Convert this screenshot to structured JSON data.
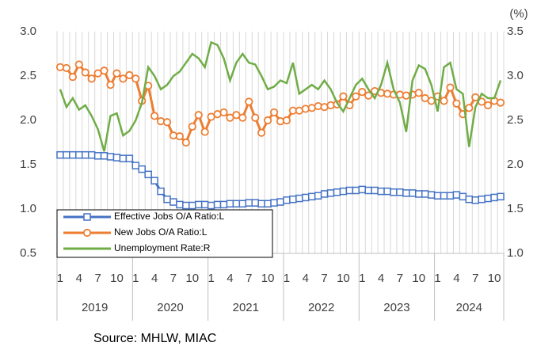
{
  "chart_data": {
    "type": "line",
    "y2_unit": "(%)",
    "source": "Source: MHLW, MIAC",
    "categories": [
      "1",
      null,
      null,
      "4",
      null,
      null,
      "7",
      null,
      null,
      "10",
      null,
      null,
      "1",
      null,
      null,
      "4",
      null,
      null,
      "7",
      null,
      null,
      "10",
      null,
      null,
      "1",
      null,
      null,
      "4",
      null,
      null,
      "7",
      null,
      null,
      "10",
      null,
      null,
      "1",
      null,
      null,
      "4",
      null,
      null,
      "7",
      null,
      null,
      "10",
      null,
      null,
      "1",
      null,
      null,
      "4",
      null,
      null,
      "7",
      null,
      null,
      "10",
      null,
      null,
      "1",
      null,
      null,
      "4",
      null,
      null,
      "7",
      null,
      null,
      "10",
      null
    ],
    "years": [
      "2019",
      "2020",
      "2021",
      "2022",
      "2023",
      "2024"
    ],
    "ylim": [
      0.5,
      3.0
    ],
    "yticks": [
      {
        "value": 0.5,
        "label": "0.5"
      },
      {
        "value": 1.0,
        "label": "1.0"
      },
      {
        "value": 1.5,
        "label": "1.5"
      },
      {
        "value": 2.0,
        "label": "2.0"
      },
      {
        "value": 2.5,
        "label": "2.5"
      },
      {
        "value": 3.0,
        "label": "3.0"
      }
    ],
    "y2lim": [
      1.0,
      3.5
    ],
    "y2ticks": [
      {
        "value": 1.0,
        "label": "1.0"
      },
      {
        "value": 1.5,
        "label": "1.5"
      },
      {
        "value": 2.0,
        "label": "2.0"
      },
      {
        "value": 2.5,
        "label": "2.5"
      },
      {
        "value": 3.0,
        "label": "3.0"
      },
      {
        "value": 3.5,
        "label": "3.5"
      }
    ],
    "xgrid": true,
    "legend": "lower left",
    "series": [
      {
        "name": "Effective Jobs O/A Ratio:L",
        "color": "#4472c4",
        "marker": "square",
        "values": [
          1.61,
          1.61,
          1.61,
          1.61,
          1.61,
          1.61,
          1.6,
          1.6,
          1.59,
          1.58,
          1.57,
          1.57,
          1.49,
          1.45,
          1.39,
          1.32,
          1.2,
          1.11,
          1.08,
          1.05,
          1.04,
          1.04,
          1.05,
          1.05,
          1.04,
          1.05,
          1.05,
          1.06,
          1.06,
          1.06,
          1.07,
          1.07,
          1.06,
          1.06,
          1.07,
          1.08,
          1.1,
          1.11,
          1.12,
          1.13,
          1.14,
          1.15,
          1.17,
          1.18,
          1.19,
          1.2,
          1.21,
          1.21,
          1.22,
          1.21,
          1.21,
          1.2,
          1.2,
          1.19,
          1.19,
          1.18,
          1.18,
          1.17,
          1.17,
          1.16,
          1.15,
          1.15,
          1.15,
          1.16,
          1.14,
          1.11,
          1.1,
          1.11,
          1.12,
          1.13,
          1.14
        ]
      },
      {
        "name": "New Jobs O/A Ratio:L",
        "color": "#ed7d31",
        "marker": "circle",
        "values": [
          2.6,
          2.59,
          2.49,
          2.63,
          2.54,
          2.47,
          2.53,
          2.56,
          2.4,
          2.53,
          2.47,
          2.51,
          2.47,
          2.22,
          2.39,
          2.05,
          1.99,
          1.98,
          1.83,
          1.82,
          1.75,
          1.93,
          2.06,
          1.87,
          2.04,
          2.07,
          2.09,
          2.03,
          2.06,
          2.03,
          2.21,
          2.03,
          1.86,
          2.0,
          2.09,
          1.99,
          2.0,
          2.11,
          2.11,
          2.13,
          2.14,
          2.16,
          2.15,
          2.17,
          2.18,
          2.27,
          2.17,
          2.27,
          2.32,
          2.28,
          2.33,
          2.31,
          2.3,
          2.29,
          2.29,
          2.28,
          2.29,
          2.31,
          2.25,
          2.22,
          2.27,
          2.22,
          2.37,
          2.19,
          2.07,
          2.14,
          2.26,
          2.21,
          2.17,
          2.22,
          2.2
        ]
      },
      {
        "name": "Unemployment Rate:R",
        "color": "#70ad47",
        "marker": "none",
        "axis": "y2",
        "values": [
          2.85,
          2.65,
          2.75,
          2.62,
          2.67,
          2.55,
          2.4,
          2.15,
          2.55,
          2.58,
          2.33,
          2.38,
          2.5,
          2.7,
          3.1,
          3.0,
          2.85,
          2.9,
          3.0,
          3.05,
          3.15,
          3.25,
          3.2,
          3.1,
          3.38,
          3.35,
          3.2,
          2.95,
          3.15,
          3.25,
          3.15,
          3.13,
          3.0,
          2.85,
          2.88,
          2.95,
          2.92,
          3.15,
          2.8,
          2.85,
          2.9,
          2.85,
          2.95,
          2.85,
          2.7,
          2.6,
          2.75,
          2.9,
          2.97,
          2.85,
          2.75,
          2.9,
          3.15,
          2.85,
          2.7,
          2.37,
          2.95,
          3.12,
          3.08,
          2.9,
          2.6,
          3.1,
          3.15,
          2.85,
          2.8,
          2.2,
          2.65,
          2.8,
          2.75,
          2.75,
          2.95
        ]
      }
    ]
  }
}
